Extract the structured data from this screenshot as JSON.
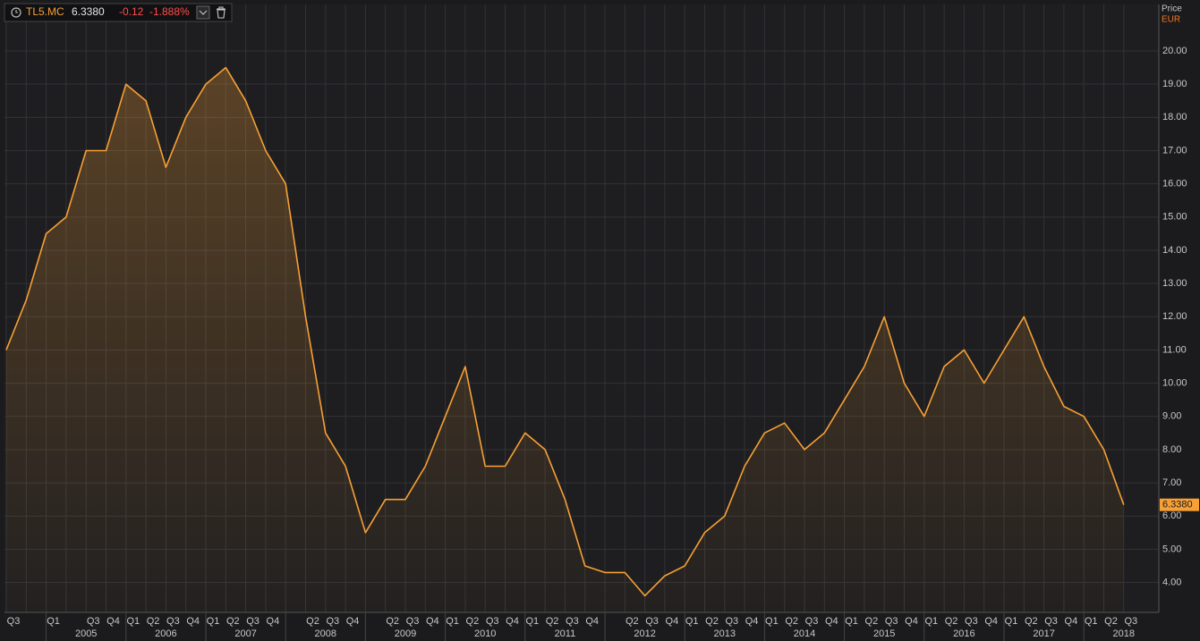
{
  "header": {
    "symbol": "TL5.MC",
    "price": "6.3380",
    "change": "-0.12",
    "change_pct": "-1.888%"
  },
  "chart_data": {
    "type": "line",
    "y_axis_title": "Price",
    "y_axis_unit": "EUR",
    "color": "#f7a035",
    "categories": [
      "Q3",
      null,
      "Q1",
      null,
      "Q3",
      "Q4",
      "Q1",
      "Q2",
      "Q3",
      "Q4",
      "Q1",
      "Q2",
      "Q3",
      "Q4",
      null,
      "Q2",
      "Q3",
      "Q4",
      null,
      "Q2",
      "Q3",
      "Q4",
      "Q1",
      "Q2",
      "Q3",
      "Q4",
      "Q1",
      "Q2",
      "Q3",
      "Q4",
      null,
      "Q2",
      "Q3",
      "Q4",
      "Q1",
      "Q2",
      "Q3",
      "Q4",
      "Q1",
      "Q2",
      "Q3",
      "Q4",
      "Q1",
      "Q2",
      "Q3",
      "Q4",
      "Q1",
      "Q2",
      "Q3",
      "Q4",
      "Q1",
      "Q2",
      "Q3",
      "Q4",
      "Q1",
      "Q2",
      "Q3"
    ],
    "years": [
      "2005",
      "2006",
      "2007",
      "2008",
      "2009",
      "2010",
      "2011",
      "2012",
      "2013",
      "2014",
      "2015",
      "2016",
      "2017",
      "2018"
    ],
    "values": [
      11.0,
      12.5,
      14.5,
      15.0,
      17.0,
      17.0,
      19.0,
      18.5,
      16.5,
      18.0,
      19.0,
      19.5,
      18.5,
      17.0,
      16.0,
      12.0,
      8.5,
      7.5,
      5.5,
      6.5,
      6.5,
      7.5,
      9.0,
      10.5,
      7.5,
      7.5,
      8.5,
      8.0,
      6.5,
      4.5,
      4.3,
      4.3,
      3.6,
      4.2,
      4.5,
      5.5,
      6.0,
      7.5,
      8.5,
      8.8,
      8.0,
      8.5,
      9.5,
      10.5,
      12.0,
      10.0,
      9.0,
      10.5,
      11.0,
      10.0,
      11.0,
      12.0,
      10.5,
      9.3,
      9.0,
      8.0,
      6.338
    ],
    "value_labels": [
      null,
      null,
      null,
      null,
      null,
      null,
      null,
      null,
      null,
      null,
      null,
      null,
      null,
      null,
      null,
      null,
      null,
      null,
      null,
      null,
      null,
      null,
      null,
      null,
      null,
      null,
      null,
      null,
      null,
      null,
      null,
      null,
      null,
      null,
      null,
      null,
      null,
      null,
      null,
      null,
      null,
      null,
      null,
      null,
      null,
      null,
      null,
      null,
      null,
      null,
      null,
      null,
      null,
      null,
      null,
      null,
      "6.3380"
    ],
    "ylim": [
      3.1,
      21.4
    ],
    "yticks": [
      {
        "value": 4,
        "label": "4.00"
      },
      {
        "value": 5,
        "label": "5.00"
      },
      {
        "value": 6,
        "label": "6.00"
      },
      {
        "value": 7,
        "label": "7.00"
      },
      {
        "value": 8,
        "label": "8.00"
      },
      {
        "value": 9,
        "label": "9.00"
      },
      {
        "value": 10,
        "label": "10.00"
      },
      {
        "value": 11,
        "label": "11.00"
      },
      {
        "value": 12,
        "label": "12.00"
      },
      {
        "value": 13,
        "label": "13.00"
      },
      {
        "value": 14,
        "label": "14.00"
      },
      {
        "value": 15,
        "label": "15.00"
      },
      {
        "value": 16,
        "label": "16.00"
      },
      {
        "value": 17,
        "label": "17.00"
      },
      {
        "value": 18,
        "label": "18.00"
      },
      {
        "value": 19,
        "label": "19.00"
      },
      {
        "value": 20,
        "label": "20.00"
      }
    ],
    "grid": true
  }
}
